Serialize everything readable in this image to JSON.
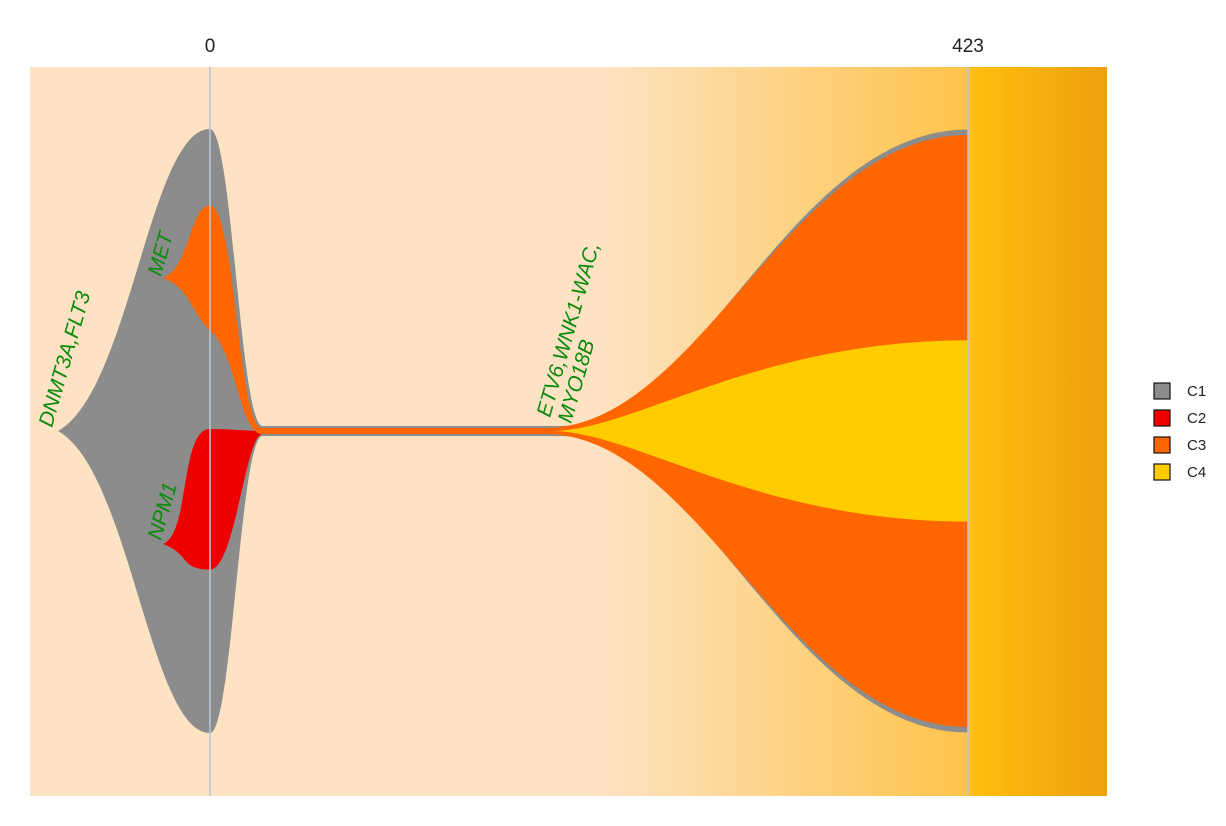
{
  "chart_data": {
    "type": "area",
    "subtype": "fishplot",
    "title": "",
    "timepoints": [
      0,
      423
    ],
    "tick_labels": [
      "0",
      "423"
    ],
    "clones": [
      {
        "name": "C1",
        "color": "#8c8c8c",
        "parent": null,
        "fractions": [
          100,
          1
        ],
        "label": "DNMT3A,FLT3"
      },
      {
        "name": "C2",
        "color": "#ee0000",
        "parent": "C1",
        "fractions": [
          38,
          0
        ],
        "label": "NPM1"
      },
      {
        "name": "C3",
        "color": "#ff6600",
        "parent": "C1",
        "fractions": [
          24,
          98
        ],
        "label": "MET"
      },
      {
        "name": "C4",
        "color": "#ffcc00",
        "parent": "C3",
        "fractions": [
          0,
          30
        ],
        "label": "ETV6,WNK1-WAC,\nMYO18B"
      }
    ],
    "legend": {
      "position": "right",
      "items": [
        {
          "label": "C1",
          "color": "#8c8c8c"
        },
        {
          "label": "C2",
          "color": "#ee0000"
        },
        {
          "label": "C3",
          "color": "#ff6600"
        },
        {
          "label": "C4",
          "color": "#ffcc00"
        }
      ]
    },
    "background_gradient": [
      "#fde3c3",
      "#fde3c3",
      "#fec34a",
      "#ffbe10",
      "#eda00c"
    ]
  }
}
